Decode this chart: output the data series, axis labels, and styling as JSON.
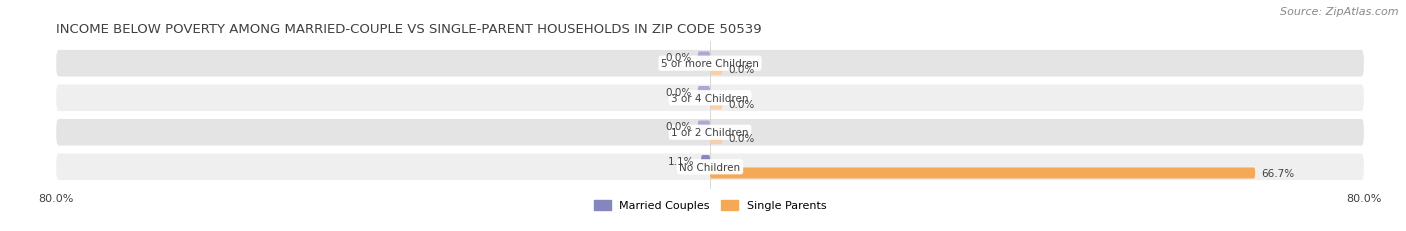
{
  "title": "INCOME BELOW POVERTY AMONG MARRIED-COUPLE VS SINGLE-PARENT HOUSEHOLDS IN ZIP CODE 50539",
  "source": "Source: ZipAtlas.com",
  "categories": [
    "No Children",
    "1 or 2 Children",
    "3 or 4 Children",
    "5 or more Children"
  ],
  "married_values": [
    1.1,
    0.0,
    0.0,
    0.0
  ],
  "single_values": [
    66.7,
    0.0,
    0.0,
    0.0
  ],
  "married_color": "#8585bf",
  "married_color_light": "#aaaad0",
  "single_color": "#f5a855",
  "single_color_light": "#f8cfaa",
  "row_bg_even": "#efefef",
  "row_bg_odd": "#e4e4e4",
  "axis_min": -80.0,
  "axis_max": 80.0,
  "title_fontsize": 9.5,
  "source_fontsize": 8,
  "label_fontsize": 7.5,
  "category_fontsize": 7.5,
  "legend_fontsize": 8,
  "tick_fontsize": 8,
  "title_color": "#404040",
  "text_color": "#404040",
  "source_color": "#888888",
  "legend_labels": [
    "Married Couples",
    "Single Parents"
  ]
}
